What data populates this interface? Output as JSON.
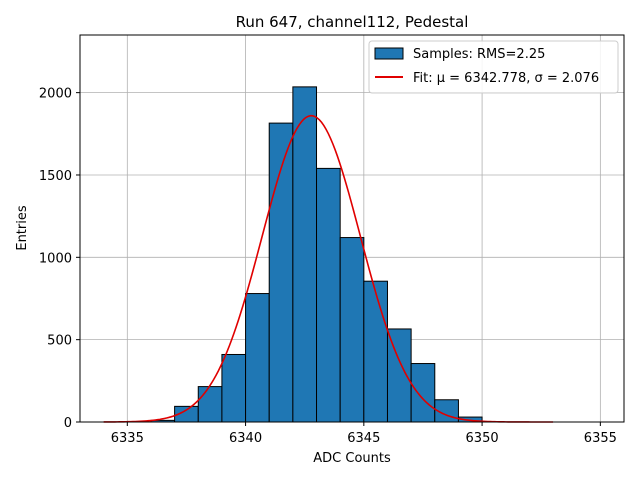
{
  "chart_data": {
    "type": "bar",
    "title": "Run 647, channel112, Pedestal",
    "xlabel": "ADC Counts",
    "ylabel": "Entries",
    "xlim": [
      6333.0,
      6356.0
    ],
    "ylim": [
      0,
      2350
    ],
    "xticks": [
      6335,
      6340,
      6345,
      6350,
      6355
    ],
    "yticks": [
      0,
      500,
      1000,
      1500,
      2000
    ],
    "grid": true,
    "legend_position": "top-right",
    "bar_color": "#1f77b4",
    "bar_edge_color": "#000000",
    "fit_color": "#e00000",
    "histogram": {
      "name": "Samples: RMS=2.25",
      "bins": [
        {
          "x0": 6336,
          "x1": 6337,
          "count": 10
        },
        {
          "x0": 6337,
          "x1": 6338,
          "count": 95
        },
        {
          "x0": 6338,
          "x1": 6339,
          "count": 215
        },
        {
          "x0": 6339,
          "x1": 6340,
          "count": 410
        },
        {
          "x0": 6340,
          "x1": 6341,
          "count": 780
        },
        {
          "x0": 6341,
          "x1": 6342,
          "count": 1815
        },
        {
          "x0": 6342,
          "x1": 6343,
          "count": 2035
        },
        {
          "x0": 6343,
          "x1": 6344,
          "count": 1540
        },
        {
          "x0": 6344,
          "x1": 6345,
          "count": 1120
        },
        {
          "x0": 6345,
          "x1": 6346,
          "count": 855
        },
        {
          "x0": 6346,
          "x1": 6347,
          "count": 565
        },
        {
          "x0": 6347,
          "x1": 6348,
          "count": 355
        },
        {
          "x0": 6348,
          "x1": 6349,
          "count": 135
        },
        {
          "x0": 6349,
          "x1": 6350,
          "count": 30
        }
      ]
    },
    "fit": {
      "name": "Fit: μ = 6342.778, σ = 2.076",
      "mu": 6342.778,
      "sigma": 2.076,
      "amplitude": 1860,
      "x_range": [
        6334,
        6353
      ]
    }
  }
}
